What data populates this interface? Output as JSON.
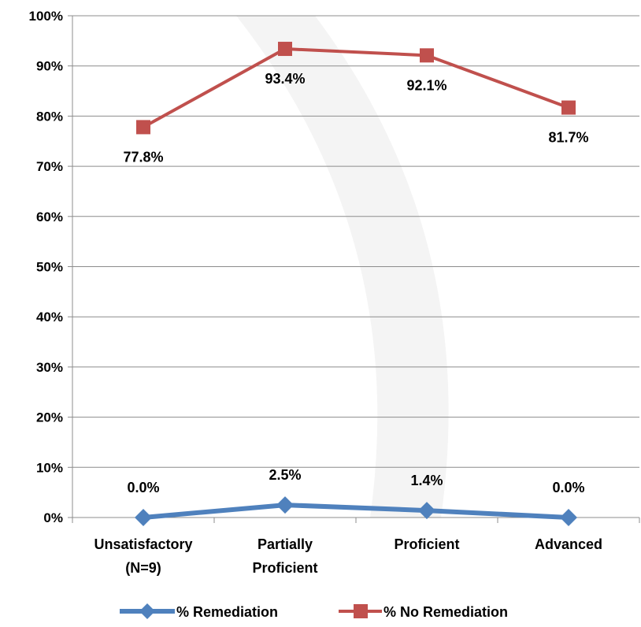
{
  "chart_data": {
    "type": "line",
    "categories": [
      [
        "Unsatisfactory",
        "(N=9)"
      ],
      [
        "Partially",
        "Proficient"
      ],
      [
        "Proficient"
      ],
      [
        "Advanced"
      ]
    ],
    "series": [
      {
        "name": "% Remediation",
        "values": [
          0.0,
          2.5,
          1.4,
          0.0
        ],
        "labels": [
          "0.0%",
          "2.5%",
          "1.4%",
          "0.0%"
        ],
        "color": "#4F81BD",
        "marker": "diamond"
      },
      {
        "name": "% No Remediation",
        "values": [
          77.8,
          93.4,
          92.1,
          81.7
        ],
        "labels": [
          "77.8%",
          "93.4%",
          "92.1%",
          "81.7%"
        ],
        "color": "#C0504D",
        "marker": "square"
      }
    ],
    "ylim": [
      0,
      100
    ],
    "yticks": [
      0,
      10,
      20,
      30,
      40,
      50,
      60,
      70,
      80,
      90,
      100
    ],
    "ytick_labels": [
      "0%",
      "10%",
      "20%",
      "30%",
      "40%",
      "50%",
      "60%",
      "70%",
      "80%",
      "90%",
      "100%"
    ],
    "grid": true,
    "legend": "bottom",
    "title": "",
    "xlabel": "",
    "ylabel": ""
  }
}
